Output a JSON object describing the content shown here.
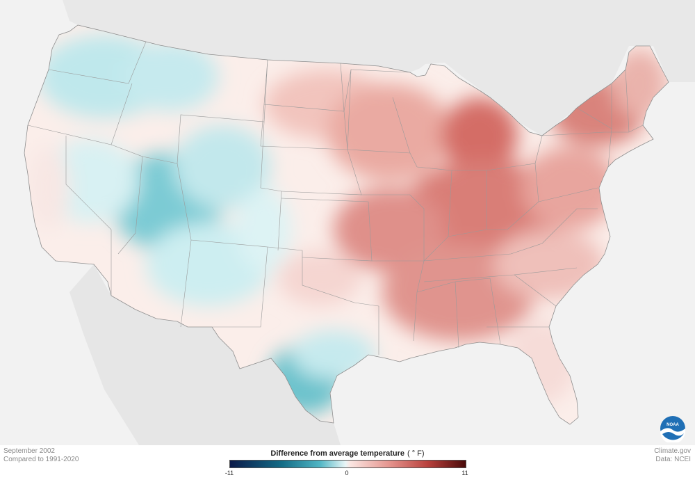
{
  "footer": {
    "date_line": "September 2002",
    "baseline_line": "Compared to 1991-2020",
    "source_line": "Climate.gov",
    "data_line": "Data: NCEI"
  },
  "legend": {
    "title": "Difference from average temperature",
    "units": "( ° F)",
    "min_label": "-11",
    "mid_label": "0",
    "max_label": "11",
    "colors": {
      "cold_extreme": "#0b1a4a",
      "cold": "#4fb5c4",
      "neutral": "#ffffff",
      "warm": "#e4928c",
      "warm_extreme": "#4a0a0a"
    }
  },
  "logo": {
    "text": "NOAA",
    "icon": "noaa-logo-icon"
  }
}
